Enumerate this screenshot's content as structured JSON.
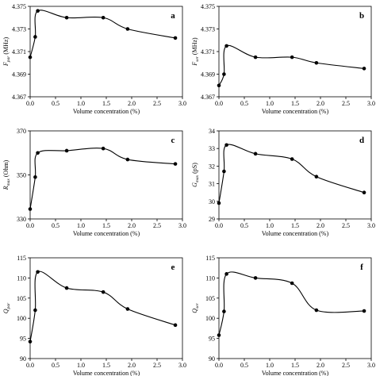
{
  "chart_data": [
    {
      "type": "line",
      "panel": "a",
      "ylabel": {
        "main": "F",
        "sub": "par",
        "unit": " (MHz)"
      },
      "xlabel": "Volume concentration (%)",
      "xlim": [
        0.0,
        3.0
      ],
      "ylim": [
        4.367,
        4.375
      ],
      "x_ticks": [
        "0.0",
        "0.5",
        "1.0",
        "1.5",
        "2.0",
        "2.5",
        "3.0"
      ],
      "y_ticks": [
        "4.367",
        "4.369",
        "4.371",
        "4.373",
        "4.375"
      ],
      "x": [
        0.0,
        0.1,
        0.15,
        0.72,
        1.44,
        1.92,
        2.86
      ],
      "y": [
        4.3705,
        4.3723,
        4.3746,
        4.374,
        4.374,
        4.373,
        4.3722
      ],
      "grid": false,
      "legend": "none"
    },
    {
      "type": "line",
      "panel": "b",
      "ylabel": {
        "main": "F",
        "sub": "ser",
        "unit": " (MHz)"
      },
      "xlabel": "Volume concentration (%)",
      "xlim": [
        0.0,
        3.0
      ],
      "ylim": [
        4.367,
        4.375
      ],
      "x_ticks": [
        "0.0",
        "0.5",
        "1.0",
        "1.5",
        "2.0",
        "2.5",
        "3.0"
      ],
      "y_ticks": [
        "4.367",
        "4.369",
        "4.371",
        "4.373",
        "4.375"
      ],
      "x": [
        0.0,
        0.1,
        0.15,
        0.72,
        1.44,
        1.92,
        2.86
      ],
      "y": [
        4.368,
        4.369,
        4.3715,
        4.3705,
        4.3705,
        4.37,
        4.3695
      ],
      "grid": false,
      "legend": "none"
    },
    {
      "type": "line",
      "panel": "c",
      "ylabel": {
        "main": "R",
        "sub": "max",
        "unit": " (Ohm)"
      },
      "xlabel": "Volume concentration (%)",
      "xlim": [
        0.0,
        3.0
      ],
      "ylim": [
        330,
        370
      ],
      "x_ticks": [
        "0.0",
        "0.5",
        "1.0",
        "1.5",
        "2.0",
        "2.5",
        "3.0"
      ],
      "y_ticks": [
        "330",
        "350",
        "370"
      ],
      "x": [
        0.0,
        0.1,
        0.15,
        0.72,
        1.44,
        1.92,
        2.86
      ],
      "y": [
        334.5,
        349.0,
        360.0,
        361.0,
        362.0,
        357.0,
        355.0
      ],
      "grid": false,
      "legend": "none"
    },
    {
      "type": "line",
      "panel": "d",
      "ylabel": {
        "main": "G",
        "sub": "max",
        "unit": " (pS)"
      },
      "xlabel": "Volume concentration (%)",
      "xlim": [
        0.0,
        3.0
      ],
      "ylim": [
        29,
        34
      ],
      "x_ticks": [
        "0.0",
        "0.5",
        "1.0",
        "1.5",
        "2.0",
        "2.5",
        "3.0"
      ],
      "y_ticks": [
        "29",
        "30",
        "31",
        "32",
        "33",
        "34"
      ],
      "x": [
        0.0,
        0.1,
        0.15,
        0.72,
        1.44,
        1.92,
        2.86
      ],
      "y": [
        29.9,
        31.7,
        33.2,
        32.7,
        32.4,
        31.4,
        30.5
      ],
      "grid": false,
      "legend": "none"
    },
    {
      "type": "line",
      "panel": "e",
      "ylabel": {
        "main": "Q",
        "sub": "par",
        "unit": ""
      },
      "xlabel": "Volume concentration (%)",
      "xlim": [
        0.0,
        3.0
      ],
      "ylim": [
        90,
        115
      ],
      "x_ticks": [
        "0.0",
        "0.5",
        "1.0",
        "1.5",
        "2.0",
        "2.5",
        "3.0"
      ],
      "y_ticks": [
        "90",
        "95",
        "100",
        "105",
        "110",
        "115"
      ],
      "x": [
        0.0,
        0.1,
        0.15,
        0.72,
        1.44,
        1.92,
        2.86
      ],
      "y": [
        94.2,
        102.0,
        111.5,
        107.5,
        106.5,
        102.3,
        98.3
      ],
      "grid": false,
      "legend": "none"
    },
    {
      "type": "line",
      "panel": "f",
      "ylabel": {
        "main": "Q",
        "sub": "ser",
        "unit": ""
      },
      "xlabel": "Volume concentration (%)",
      "xlim": [
        0.0,
        3.0
      ],
      "ylim": [
        90,
        115
      ],
      "x_ticks": [
        "0.0",
        "0.5",
        "1.0",
        "1.5",
        "2.0",
        "2.5",
        "3.0"
      ],
      "y_ticks": [
        "90",
        "95",
        "100",
        "105",
        "110",
        "115"
      ],
      "x": [
        0.0,
        0.1,
        0.15,
        0.72,
        1.44,
        1.92,
        2.86
      ],
      "y": [
        95.8,
        101.7,
        111.0,
        110.0,
        108.7,
        102.0,
        101.8
      ],
      "grid": false,
      "legend": "none"
    }
  ]
}
